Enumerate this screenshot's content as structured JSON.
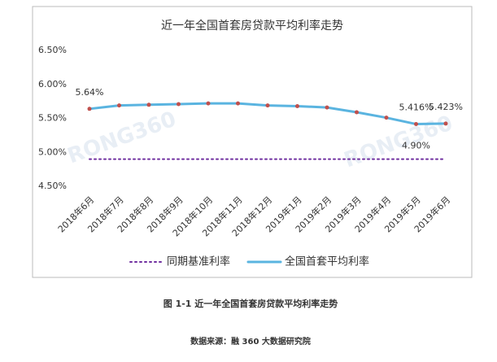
{
  "chart_data": {
    "type": "line",
    "title": "近一年全国首套房贷款平均利率走势",
    "categories": [
      "2018年6月",
      "2018年7月",
      "2018年8月",
      "2018年9月",
      "2018年10月",
      "2018年11月",
      "2018年12月",
      "2019年1月",
      "2019年2月",
      "2019年3月",
      "2019年4月",
      "2019年5月",
      "2019年6月"
    ],
    "series": [
      {
        "name": "同期基准利率",
        "color": "#7030a0",
        "style": "dotted",
        "values": [
          4.9,
          4.9,
          4.9,
          4.9,
          4.9,
          4.9,
          4.9,
          4.9,
          4.9,
          4.9,
          4.9,
          4.9,
          4.9
        ],
        "value_labels": [
          null,
          null,
          null,
          null,
          null,
          null,
          null,
          null,
          null,
          null,
          null,
          "4.90%",
          null
        ]
      },
      {
        "name": "全国首套平均利率",
        "color": "#5ab4e0",
        "marker_color": "#c0504d",
        "style": "solid",
        "values": [
          5.64,
          5.69,
          5.7,
          5.71,
          5.72,
          5.72,
          5.69,
          5.68,
          5.66,
          5.59,
          5.51,
          5.416,
          5.423
        ],
        "value_labels": [
          "5.64%",
          null,
          null,
          null,
          null,
          null,
          null,
          null,
          null,
          null,
          null,
          "5.416%",
          "5.423%"
        ]
      }
    ],
    "ylim": [
      4.5,
      6.5
    ],
    "yticks": [
      {
        "value": 4.5,
        "label": "4.50%"
      },
      {
        "value": 5.0,
        "label": "5.00%"
      },
      {
        "value": 5.5,
        "label": "5.50%"
      },
      {
        "value": 6.0,
        "label": "6.00%"
      },
      {
        "value": 6.5,
        "label": "6.50%"
      }
    ],
    "watermark": "RONG360",
    "caption": "图 1-1  近一年全国首套房贷款平均利率走势",
    "source": "数据来源：融 360 大数据研究院"
  }
}
